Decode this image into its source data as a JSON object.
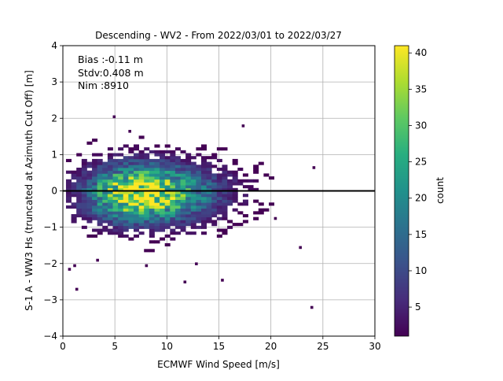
{
  "chart_data": {
    "type": "heatmap",
    "title": "Descending - WV2 - From 2022/03/01 to 2022/03/27",
    "xlabel": "ECMWF Wind Speed [m/s]",
    "ylabel": "S-1 A - WW3 Hs (truncated at Azimuth Cut Off) [m]",
    "xlim": [
      0,
      30
    ],
    "ylim": [
      -4,
      4
    ],
    "xticks": [
      "0",
      "5",
      "10",
      "15",
      "20",
      "25",
      "30"
    ],
    "yticks": [
      "4",
      "3",
      "2",
      "1",
      "0",
      "−1",
      "−2",
      "−3",
      "−4"
    ],
    "grid": true,
    "reference_line_y": 0,
    "stats": {
      "bias": "Bias :-0.11 m",
      "stdv": "Stdv:0.408 m",
      "nim": "Nim :8910"
    },
    "colorbar": {
      "label": "count",
      "min": 1,
      "max": 41,
      "colormap": "viridis",
      "ticks": [
        "5",
        "10",
        "15",
        "20",
        "25",
        "30",
        "35",
        "40"
      ]
    },
    "density_model": {
      "total_points": 8910,
      "peak_x": 6.8,
      "peak_y": -0.1,
      "std_x": 3.4,
      "std_y": 0.408
    },
    "outliers": [
      {
        "x": 4.8,
        "y": 2.0
      },
      {
        "x": 6.3,
        "y": 1.6
      },
      {
        "x": 1.2,
        "y": -2.75
      },
      {
        "x": 0.5,
        "y": -2.2
      },
      {
        "x": 23.8,
        "y": -3.25
      },
      {
        "x": 22.7,
        "y": -1.6
      },
      {
        "x": 24.0,
        "y": 0.6
      },
      {
        "x": 15.2,
        "y": -2.5
      },
      {
        "x": 11.6,
        "y": -2.55
      },
      {
        "x": 20.3,
        "y": -0.8
      },
      {
        "x": 17.2,
        "y": 1.75
      },
      {
        "x": 7.9,
        "y": -2.1
      },
      {
        "x": 1.0,
        "y": -2.1
      },
      {
        "x": 3.2,
        "y": -1.95
      },
      {
        "x": 12.7,
        "y": -2.05
      }
    ]
  }
}
